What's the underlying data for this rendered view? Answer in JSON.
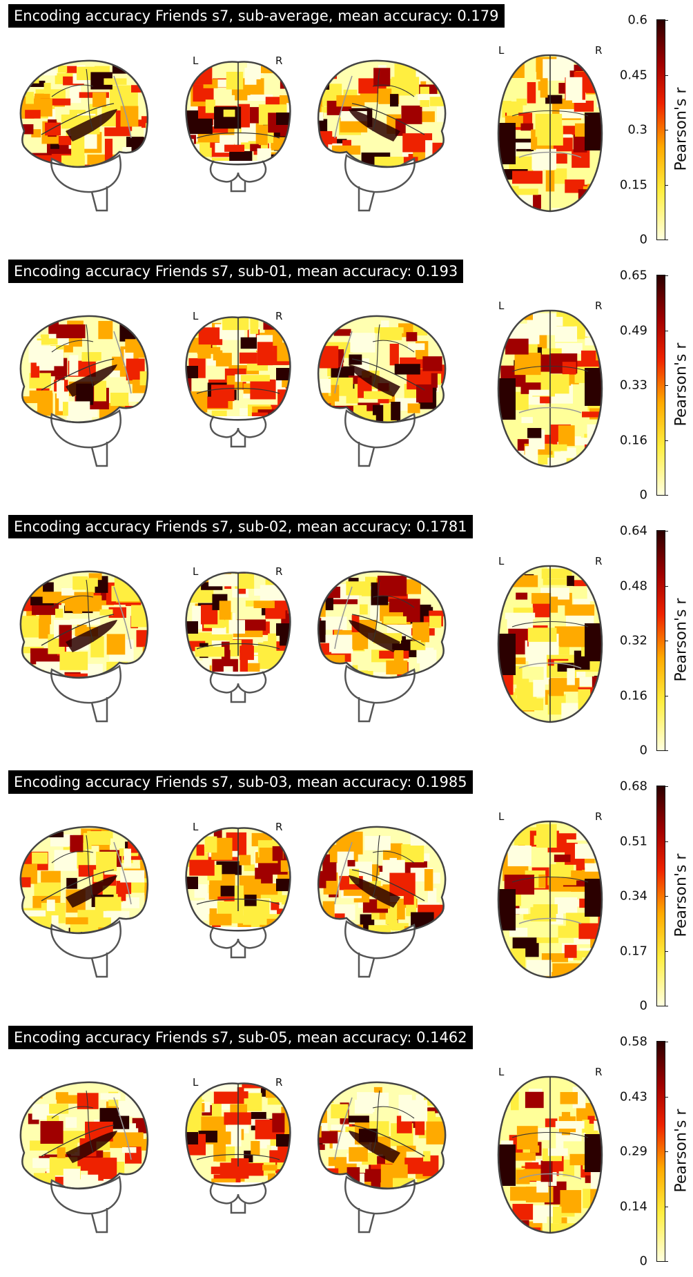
{
  "view_labels": {
    "left": "L",
    "right": "R"
  },
  "colorbar_label": "Pearson's r",
  "colormap": [
    "#ffffe0",
    "#ffee40",
    "#ffaa00",
    "#ee2200",
    "#a00000",
    "#2b0000"
  ],
  "panels": [
    {
      "title": "Encoding accuracy Friends s7, sub-average, mean accuracy: 0.179",
      "ticks": [
        "0.6",
        "0.45",
        "0.3",
        "0.15",
        "0"
      ]
    },
    {
      "title": "Encoding accuracy Friends s7, sub-01, mean accuracy: 0.193",
      "ticks": [
        "0.65",
        "0.49",
        "0.33",
        "0.16",
        "0"
      ]
    },
    {
      "title": "Encoding accuracy Friends s7, sub-02, mean accuracy: 0.1781",
      "ticks": [
        "0.64",
        "0.48",
        "0.32",
        "0.16",
        "0"
      ]
    },
    {
      "title": "Encoding accuracy Friends s7, sub-03, mean accuracy: 0.1985",
      "ticks": [
        "0.68",
        "0.51",
        "0.34",
        "0.17",
        "0"
      ]
    },
    {
      "title": "Encoding accuracy Friends s7, sub-05, mean accuracy: 0.1462",
      "ticks": [
        "0.58",
        "0.43",
        "0.29",
        "0.14",
        "0"
      ]
    }
  ]
}
